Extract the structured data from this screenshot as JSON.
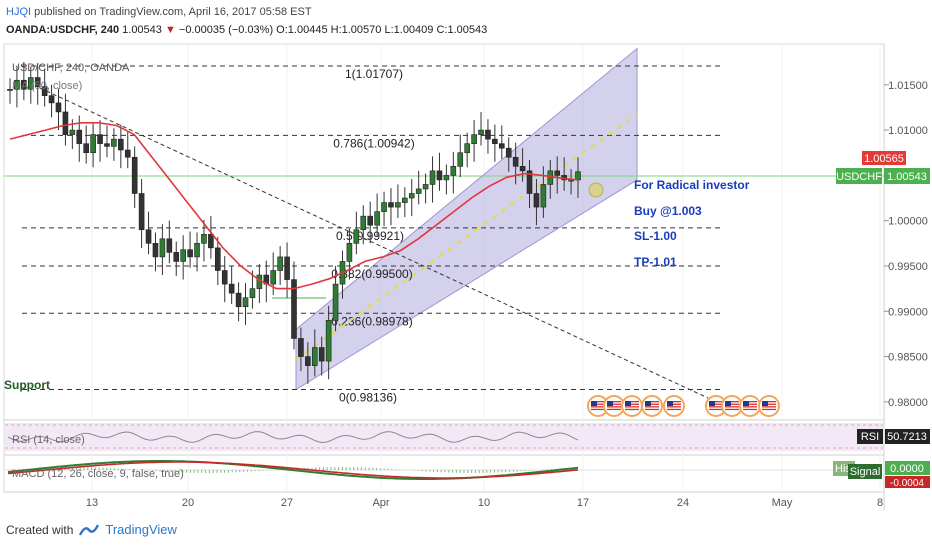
{
  "header": {
    "user": "HJQI",
    "published": "published on TradingView.com, April 16, 2017 05:58 EST",
    "symbol": "OANDA:USDCHF, 240",
    "last": "1.00543",
    "change_arrow": "▼",
    "change": "−0.00035 (−0.03%)",
    "o_label": "O:",
    "o": "1.00445",
    "h_label": "H:",
    "h": "1.00570",
    "l_label": "L:",
    "l": "1.00409",
    "c_label": "C:",
    "c": "1.00543"
  },
  "legend": {
    "title": "USD/CHF, 240, OANDA",
    "ma": "MA (50, close)"
  },
  "fib_labels": [
    {
      "text": "1(1.01707)",
      "level": 1.01707
    },
    {
      "text": "0.786(1.00942)",
      "level": 1.00942
    },
    {
      "text": "0.5(0.99921)",
      "level": 0.99921
    },
    {
      "text": "0.382(0.99500)",
      "level": 0.995
    },
    {
      "text": "0.236(0.98978)",
      "level": 0.98978
    },
    {
      "text": "0(0.98136)",
      "level": 0.98136
    }
  ],
  "annotations": {
    "line1": "For Radical investor",
    "line2": "Buy @1.003",
    "line3": "SL-1.00",
    "line4": "TP-1.01",
    "support": "Support"
  },
  "price_axis": {
    "ticks": [
      "1.01500",
      "1.01000",
      "1.00000",
      "0.99500",
      "0.99000",
      "0.98500",
      "0.98000"
    ],
    "tick_values": [
      1.015,
      1.01,
      1.0,
      0.995,
      0.99,
      0.985,
      0.98
    ],
    "badge_high": "1.00565",
    "badge_symbol": "USDCHF",
    "badge_price": "1.00543"
  },
  "rsi": {
    "label": "RSI (14, close)",
    "badge_label": "RSI",
    "badge_value": "50.7213"
  },
  "macd": {
    "label": "MACD (12, 26, close, 9, false, true)",
    "hist_label": "His",
    "signal_label": "Signal",
    "signal_value": "0.0000",
    "hist_value": "-0.0004"
  },
  "time_axis": [
    "13",
    "20",
    "27",
    "Apr",
    "10",
    "17",
    "24",
    "May",
    "8"
  ],
  "footer": {
    "created": "Created with",
    "brand": "TradingView"
  },
  "colors": {
    "channel": "#b7b3e0",
    "ma_line": "#e0373f",
    "trend_yellow": "#f1e85a",
    "rsi_band": "#f3e9f6",
    "up_candle": "#2e7d32",
    "grid": "#eeeeee"
  },
  "chart_data": {
    "type": "candlestick",
    "symbol": "OANDA:USDCHF",
    "timeframe": "240",
    "ylim": [
      0.978,
      1.0195
    ],
    "x_ticks": [
      "13",
      "20",
      "27",
      "Apr",
      "10",
      "17",
      "24",
      "May",
      "8"
    ],
    "close_path": [
      1.0145,
      1.0155,
      1.0145,
      1.0158,
      1.0148,
      1.0138,
      1.013,
      1.012,
      1.0095,
      1.01,
      1.0085,
      1.0075,
      1.0095,
      1.0085,
      1.0082,
      1.009,
      1.0078,
      1.007,
      1.003,
      0.999,
      0.9975,
      0.996,
      0.998,
      0.9965,
      0.9955,
      0.9968,
      0.996,
      0.9975,
      0.9985,
      0.997,
      0.9945,
      0.993,
      0.992,
      0.9905,
      0.9915,
      0.9925,
      0.994,
      0.993,
      0.9945,
      0.996,
      0.9935,
      0.987,
      0.985,
      0.984,
      0.986,
      0.9845,
      0.989,
      0.993,
      0.9955,
      0.9975,
      0.999,
      1.0005,
      0.9995,
      1.001,
      1.002,
      1.0015,
      1.002,
      1.0025,
      1.003,
      1.0035,
      1.004,
      1.0055,
      1.0045,
      1.005,
      1.006,
      1.0075,
      1.0085,
      1.0095,
      1.01,
      1.009,
      1.0085,
      1.008,
      1.007,
      1.006,
      1.0055,
      1.003,
      1.0015,
      1.004,
      1.0055,
      1.005,
      1.0045,
      1.0045,
      1.0054
    ],
    "ma50_path": [
      1.009,
      1.0095,
      1.01,
      1.0105,
      1.0108,
      1.0108,
      1.0105,
      1.0095,
      1.007,
      1.0045,
      1.002,
      0.9995,
      0.997,
      0.995,
      0.9935,
      0.9925,
      0.9925,
      0.993,
      0.9936,
      0.9945,
      0.9955,
      0.996,
      0.9967,
      0.998,
      0.9995,
      1.001,
      1.0025,
      1.0038,
      1.0048,
      1.0052,
      1.005,
      1.0047,
      1.0045
    ],
    "channel": {
      "lower_start": 0.98136,
      "lower_end": 1.0045,
      "upper_start": 0.988,
      "upper_end": 1.019
    },
    "fib_levels": [
      1.01707,
      1.00942,
      0.99921,
      0.995,
      0.98978,
      0.98136
    ],
    "trade_plan": {
      "buy": 1.003,
      "stop_loss": 1.0,
      "take_profit": 1.01
    },
    "last_price": 1.00543,
    "rsi_value": 50.7213,
    "macd_signal": 0.0,
    "macd_hist": -0.0004
  }
}
